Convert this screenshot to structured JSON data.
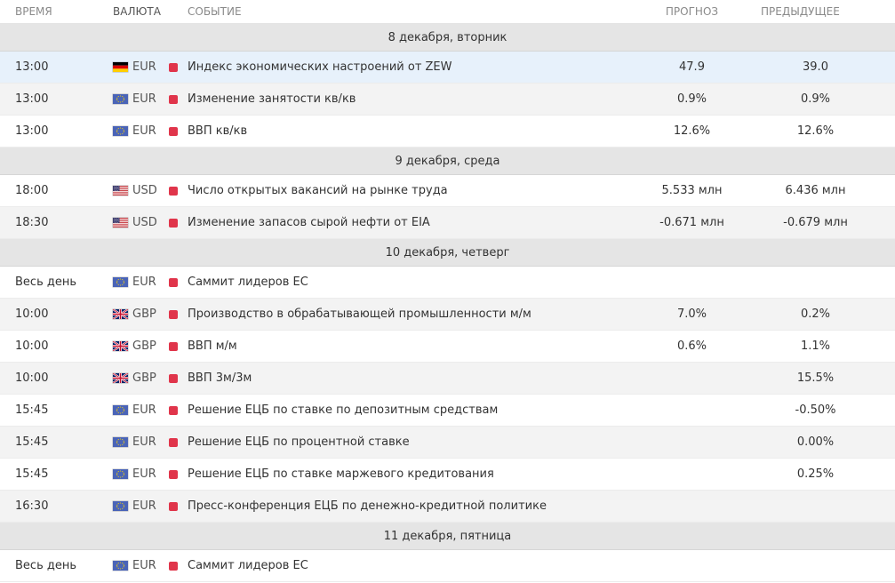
{
  "columns": {
    "time": "Время",
    "currency": "Валюта",
    "event": "Событие",
    "forecast": "Прогноз",
    "previous": "Предыдущее"
  },
  "days": [
    {
      "label": "8 декабря, вторник",
      "events": [
        {
          "time": "13:00",
          "flag": "de-flag-icon",
          "currency": "EUR",
          "event": "Индекс экономических настроений от ZEW",
          "forecast": "47.9",
          "previous": "39.0"
        },
        {
          "time": "13:00",
          "flag": "eu-flag-icon",
          "currency": "EUR",
          "event": "Изменение занятости кв/кв",
          "forecast": "0.9%",
          "previous": "0.9%"
        },
        {
          "time": "13:00",
          "flag": "eu-flag-icon",
          "currency": "EUR",
          "event": "ВВП кв/кв",
          "forecast": "12.6%",
          "previous": "12.6%"
        }
      ]
    },
    {
      "label": "9 декабря, среда",
      "events": [
        {
          "time": "18:00",
          "flag": "us-flag-icon",
          "currency": "USD",
          "event": "Число открытых вакансий на рынке труда",
          "forecast": "5.533 млн",
          "previous": "6.436 млн"
        },
        {
          "time": "18:30",
          "flag": "us-flag-icon",
          "currency": "USD",
          "event": "Изменение запасов сырой нефти от EIA",
          "forecast": "-0.671 млн",
          "previous": "-0.679 млн"
        }
      ]
    },
    {
      "label": "10 декабря, четверг",
      "events": [
        {
          "time": "Весь день",
          "flag": "eu-flag-icon",
          "currency": "EUR",
          "event": "Саммит лидеров ЕС",
          "forecast": "",
          "previous": ""
        },
        {
          "time": "10:00",
          "flag": "gb-flag-icon",
          "currency": "GBP",
          "event": "Производство в обрабатывающей промышленности м/м",
          "forecast": "7.0%",
          "previous": "0.2%"
        },
        {
          "time": "10:00",
          "flag": "gb-flag-icon",
          "currency": "GBP",
          "event": "ВВП м/м",
          "forecast": "0.6%",
          "previous": "1.1%"
        },
        {
          "time": "10:00",
          "flag": "gb-flag-icon",
          "currency": "GBP",
          "event": "ВВП 3м/3м",
          "forecast": "",
          "previous": "15.5%"
        },
        {
          "time": "15:45",
          "flag": "eu-flag-icon",
          "currency": "EUR",
          "event": "Решение ЕЦБ по ставке по депозитным средствам",
          "forecast": "",
          "previous": "-0.50%"
        },
        {
          "time": "15:45",
          "flag": "eu-flag-icon",
          "currency": "EUR",
          "event": "Решение ЕЦБ по процентной ставке",
          "forecast": "",
          "previous": "0.00%"
        },
        {
          "time": "15:45",
          "flag": "eu-flag-icon",
          "currency": "EUR",
          "event": "Решение ЕЦБ по ставке маржевого кредитования",
          "forecast": "",
          "previous": "0.25%"
        },
        {
          "time": "16:30",
          "flag": "eu-flag-icon",
          "currency": "EUR",
          "event": "Пресс-конференция ЕЦБ по денежно-кредитной политике",
          "forecast": "",
          "previous": ""
        }
      ]
    },
    {
      "label": "11 декабря, пятница",
      "events": [
        {
          "time": "Весь день",
          "flag": "eu-flag-icon",
          "currency": "EUR",
          "event": "Саммит лидеров ЕС",
          "forecast": "",
          "previous": ""
        }
      ]
    }
  ],
  "colors": {
    "importance_high": "#e0354b",
    "day_header_bg": "#e5e5e5",
    "row_alt_bg": "#f3f3f3",
    "row_highlight_bg": "#e7f1fb"
  }
}
